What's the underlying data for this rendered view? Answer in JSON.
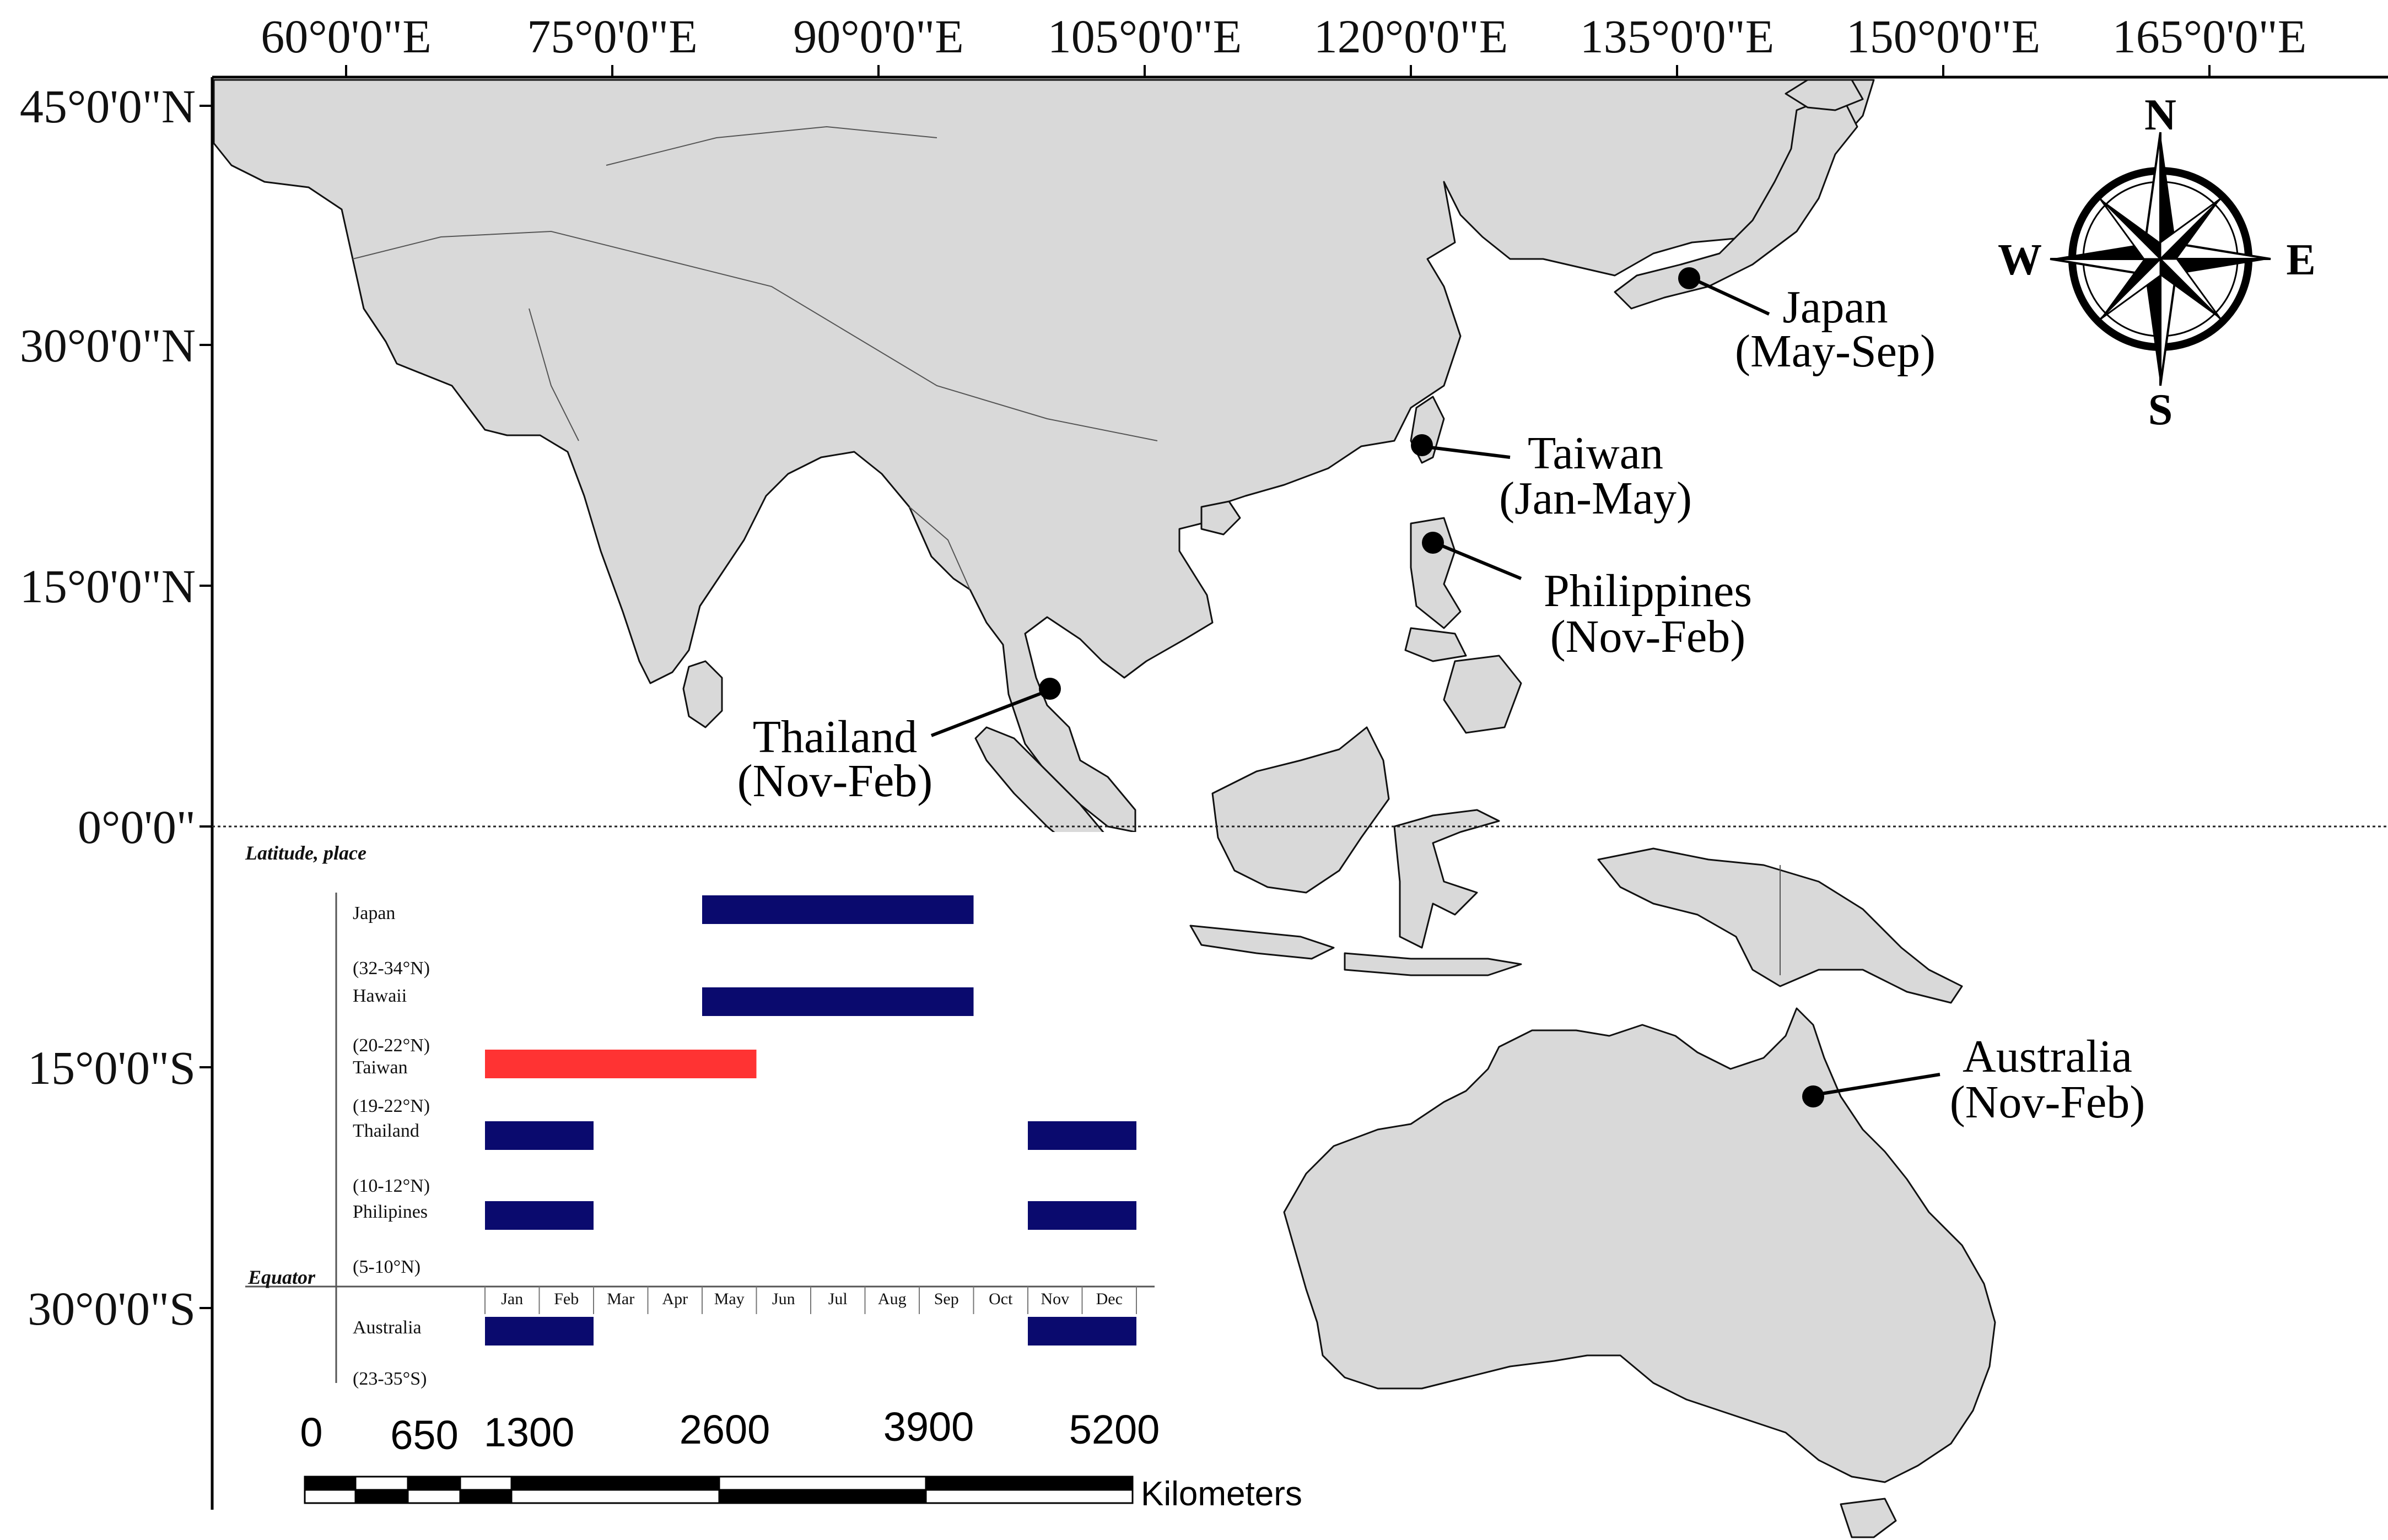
{
  "axes": {
    "top_ticks": [
      "60°0'0\"E",
      "75°0'0\"E",
      "90°0'0\"E",
      "105°0'0\"E",
      "120°0'0\"E",
      "135°0'0\"E",
      "150°0'0\"E",
      "165°0'0\"E"
    ],
    "left_ticks": [
      "45°0'0\"N",
      "30°0'0\"N",
      "15°0'0\"N",
      "0°0'0\"",
      "15°0'0\"S",
      "30°0'0\"S"
    ]
  },
  "compass": {
    "north": "N",
    "south": "S",
    "east": "E",
    "west": "W"
  },
  "places": [
    {
      "name": "Japan",
      "season": "(May-Sep)"
    },
    {
      "name": "Taiwan",
      "season": "(Jan-May)"
    },
    {
      "name": "Philippines",
      "season": "(Nov-Feb)"
    },
    {
      "name": "Thailand",
      "season": "(Nov-Feb)"
    },
    {
      "name": "Australia",
      "season": "(Nov-Feb)"
    }
  ],
  "inset": {
    "header": "Latitude, place",
    "equator_label": "Equator",
    "months": [
      "Jan",
      "Feb",
      "Mar",
      "Apr",
      "May",
      "Jun",
      "Jul",
      "Aug",
      "Sep",
      "Oct",
      "Nov",
      "Dec"
    ],
    "rows": [
      {
        "place": "Japan",
        "latitude": "(32-34°N)",
        "months": [
          5,
          6,
          7,
          8,
          9
        ],
        "color": "#0a0a6e"
      },
      {
        "place": "Hawaii",
        "latitude": "(20-22°N)",
        "months": [
          5,
          6,
          7,
          8,
          9
        ],
        "color": "#0a0a6e"
      },
      {
        "place": "Taiwan",
        "latitude": "(19-22°N)",
        "months": [
          1,
          2,
          3,
          4,
          5
        ],
        "color": "#ff3333"
      },
      {
        "place": "Thailand",
        "latitude": "(10-12°N)",
        "months": [
          11,
          12,
          1,
          2
        ],
        "color": "#0a0a6e"
      },
      {
        "place": "Philipines",
        "latitude": "(5-10°N)",
        "months": [
          11,
          12,
          1,
          2
        ],
        "color": "#0a0a6e"
      },
      {
        "place": "Australia",
        "latitude": "(23-35°S)",
        "months": [
          11,
          12,
          1,
          2
        ],
        "color": "#0a0a6e"
      }
    ]
  },
  "scale_bar": {
    "labels": [
      "0",
      "650",
      "1300",
      "2600",
      "3900",
      "5200"
    ],
    "unit": "Kilometers"
  },
  "colors": {
    "land": "#d9d9d9",
    "ocean": "#ffffff",
    "bar_blue": "#0a0a6e",
    "bar_red": "#ff3333"
  }
}
